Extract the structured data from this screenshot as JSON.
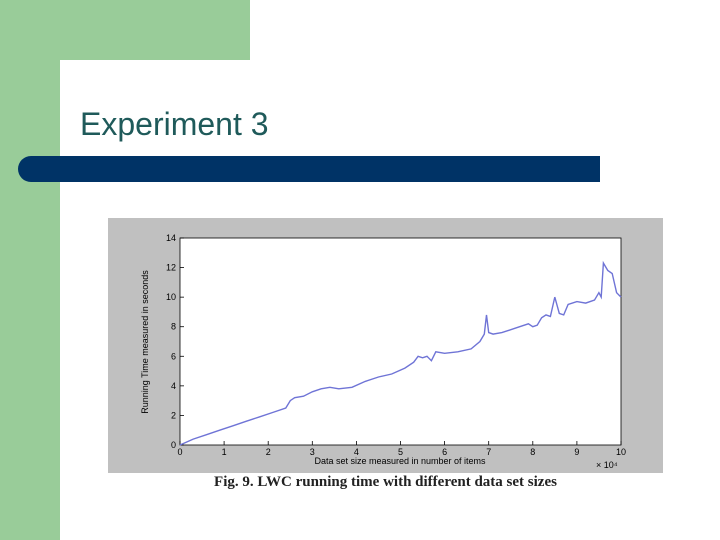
{
  "slide": {
    "title": "Experiment 3",
    "caption": "Fig. 9. LWC running time with different data set sizes"
  },
  "colors": {
    "green": "#99cc99",
    "bar": "#003366",
    "title": "#1f5a5a",
    "plot_bg": "#c0c0c0",
    "line": "#6f74d6"
  },
  "chart_data": {
    "type": "line",
    "title": "",
    "xlabel": "Data set size measured in number of items",
    "ylabel": "Running Time measured in seconds",
    "x_multiplier": "× 10⁴",
    "xlim": [
      0,
      10
    ],
    "ylim": [
      0,
      14
    ],
    "xticks": [
      0,
      1,
      2,
      3,
      4,
      5,
      6,
      7,
      8,
      9,
      10
    ],
    "yticks": [
      0,
      2,
      4,
      6,
      8,
      10,
      12,
      14
    ],
    "grid": false,
    "series": [
      {
        "x": [
          0,
          0.3,
          0.6,
          0.9,
          1.2,
          1.5,
          1.8,
          2.1,
          2.4,
          2.5,
          2.6,
          2.8,
          3.0,
          3.2,
          3.4,
          3.6,
          3.9,
          4.2,
          4.5,
          4.8,
          5.1,
          5.3,
          5.4,
          5.5,
          5.6,
          5.7,
          5.8,
          6.0,
          6.3,
          6.6,
          6.8,
          6.9,
          6.95,
          7.0,
          7.1,
          7.3,
          7.6,
          7.9,
          8.0,
          8.1,
          8.2,
          8.3,
          8.4,
          8.5,
          8.6,
          8.7,
          8.8,
          9.0,
          9.2,
          9.4,
          9.5,
          9.55,
          9.6,
          9.7,
          9.8,
          9.9,
          10.0
        ],
        "y": [
          0,
          0.4,
          0.7,
          1.0,
          1.3,
          1.6,
          1.9,
          2.2,
          2.5,
          3.0,
          3.2,
          3.3,
          3.6,
          3.8,
          3.9,
          3.8,
          3.9,
          4.3,
          4.6,
          4.8,
          5.2,
          5.6,
          6.0,
          5.9,
          6.0,
          5.7,
          6.3,
          6.2,
          6.3,
          6.5,
          7.0,
          7.5,
          8.8,
          7.6,
          7.5,
          7.6,
          7.9,
          8.2,
          8.0,
          8.1,
          8.6,
          8.8,
          8.7,
          10.0,
          8.9,
          8.8,
          9.5,
          9.7,
          9.6,
          9.8,
          10.3,
          10.0,
          12.3,
          11.8,
          11.6,
          10.3,
          10.0
        ]
      }
    ]
  }
}
